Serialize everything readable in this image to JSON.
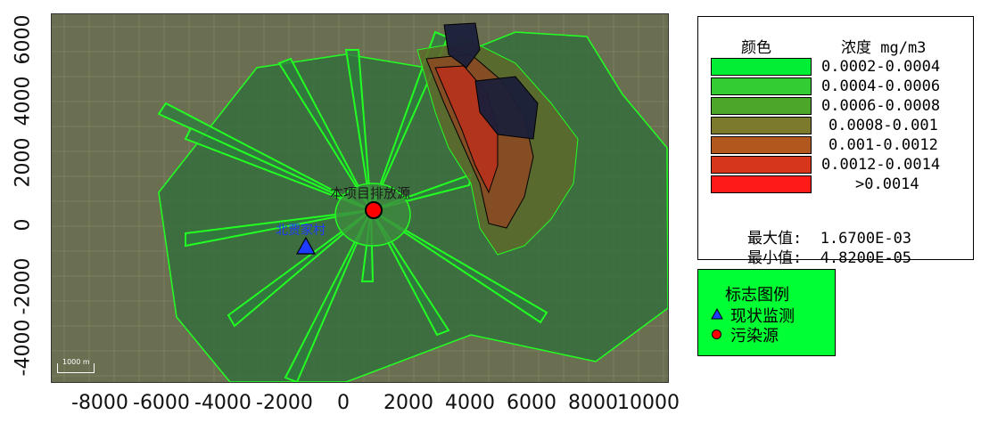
{
  "map": {
    "x_ticks": [
      "-8000",
      "-6000",
      "-4000",
      "-2000",
      "0",
      "2000",
      "4000",
      "6000",
      "8000",
      "10000"
    ],
    "y_ticks": [
      "6000",
      "4000",
      "2000",
      "0",
      "-2000",
      "-4000"
    ],
    "labels": {
      "source_label": "本项目排放源",
      "monitor_label": "北贾家村"
    },
    "scale_text": "1000 m",
    "colors": {
      "basemap": "#6b6f52",
      "plume_outline": "#22ff22",
      "monitor": "#1e3cff",
      "source": "#ff0000"
    }
  },
  "legend": {
    "color_header": "颜色",
    "conc_header": "浓度 mg/m3",
    "classes": [
      {
        "range": "0.0002-0.0004",
        "color": "#00ee33"
      },
      {
        "range": "0.0004-0.0006",
        "color": "#33cc33"
      },
      {
        "range": "0.0006-0.0008",
        "color": "#4ba62a"
      },
      {
        "range": "0.0008-0.001",
        "color": "#7c7a2c"
      },
      {
        "range": "0.001-0.0012",
        "color": "#b0581e"
      },
      {
        "range": "0.0012-0.0014",
        "color": "#d6361a"
      },
      {
        "range": ">0.0014",
        "color": "#ff1a1a"
      }
    ],
    "max_label": "最大值:",
    "max_value": "1.6700E-03",
    "min_label": "最小值:",
    "min_value": "4.8200E-05"
  },
  "symbols": {
    "title": "标志图例",
    "monitor": "现状监测",
    "source": "污染源"
  }
}
